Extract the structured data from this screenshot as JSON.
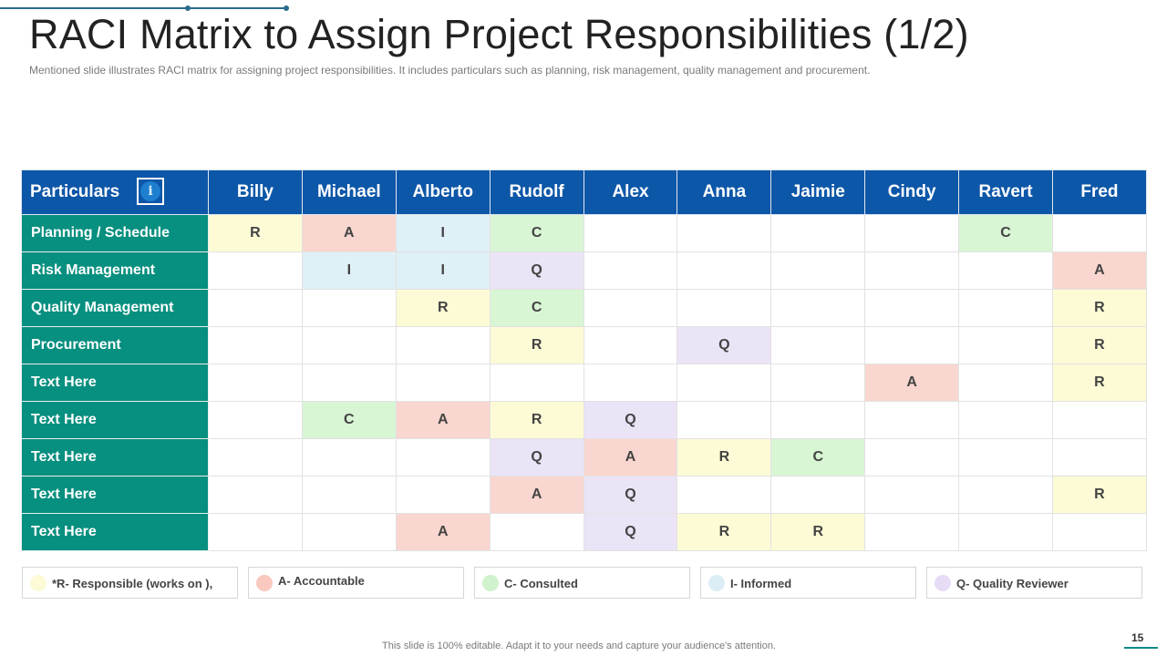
{
  "title": "RACI Matrix to Assign Project Responsibilities (1/2)",
  "subtitle": "Mentioned slide illustrates RACI matrix for assigning project responsibilities. It includes particulars such as planning, risk management, quality management and procurement.",
  "table": {
    "corner_label": "Particulars",
    "corner_icon": "info-icon",
    "people": [
      "Billy",
      "Michael",
      "Alberto",
      "Rudolf",
      "Alex",
      "Anna",
      "Jaimie",
      "Cindy",
      "Ravert",
      "Fred"
    ],
    "rows": [
      {
        "label": "Planning / Schedule",
        "cells": [
          "R",
          "A",
          "I",
          "C",
          "",
          "",
          "",
          "",
          "C",
          ""
        ]
      },
      {
        "label": "Risk Management",
        "cells": [
          "",
          "I",
          "I",
          "Q",
          "",
          "",
          "",
          "",
          "",
          "A"
        ]
      },
      {
        "label": "Quality Management",
        "cells": [
          "",
          "",
          "R",
          "C",
          "",
          "",
          "",
          "",
          "",
          "R"
        ]
      },
      {
        "label": "Procurement",
        "cells": [
          "",
          "",
          "",
          "R",
          "",
          "Q",
          "",
          "",
          "",
          "R"
        ]
      },
      {
        "label": "Text Here",
        "cells": [
          "",
          "",
          "",
          "",
          "",
          "",
          "",
          "A",
          "",
          "R"
        ]
      },
      {
        "label": "Text Here",
        "cells": [
          "",
          "C",
          "A",
          "R",
          "Q",
          "",
          "",
          "",
          "",
          ""
        ]
      },
      {
        "label": "Text Here",
        "cells": [
          "",
          "",
          "",
          "Q",
          "A",
          "R",
          "C",
          "",
          "",
          ""
        ]
      },
      {
        "label": "Text Here",
        "cells": [
          "",
          "",
          "",
          "A",
          "Q",
          "",
          "",
          "",
          "",
          "R"
        ]
      },
      {
        "label": "Text Here",
        "cells": [
          "",
          "",
          "A",
          "",
          "Q",
          "R",
          "R",
          "",
          "",
          ""
        ]
      }
    ]
  },
  "colors": {
    "header_bg": "#0d57a8",
    "row_header_bg": "#078f7f",
    "R": "#fdfbd6",
    "A": "#f9d6cf",
    "C": "#d8f5d4",
    "I": "#dff0f6",
    "Q": "#ebe3f6"
  },
  "legend": [
    {
      "key": "R",
      "label": "*R- Responsible (works on ),",
      "color": "#fdfbd6"
    },
    {
      "key": "A",
      "label": "A- Accountable",
      "color": "#f9c8be"
    },
    {
      "key": "C",
      "label": "C- Consulted",
      "color": "#d0f2cc"
    },
    {
      "key": "I",
      "label": "I- Informed",
      "color": "#dcedf5"
    },
    {
      "key": "Q",
      "label": "Q- Quality Reviewer",
      "color": "#e6dcf5"
    }
  ],
  "footer": "This slide is 100% editable. Adapt it to your needs and capture your audience's attention.",
  "page_number": "15"
}
